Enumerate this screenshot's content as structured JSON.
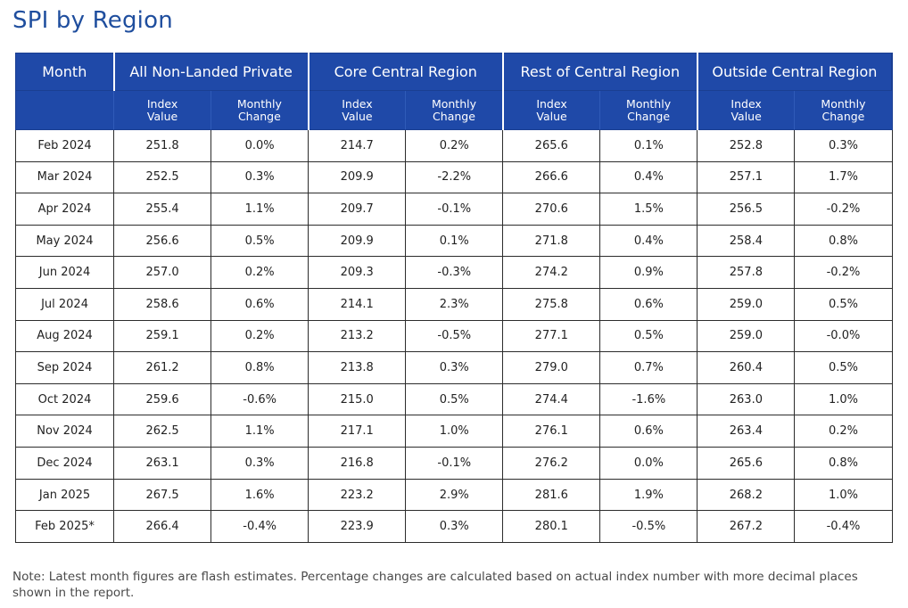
{
  "title": "SPI by Region",
  "header": {
    "month": "Month",
    "groups": [
      "All Non-Landed Private",
      "Core Central Region",
      "Rest of Central Region",
      "Outside Central Region"
    ],
    "sub_index": "Index\nValue",
    "sub_change": "Monthly\nChange"
  },
  "chart_data": {
    "type": "table",
    "title": "SPI by Region",
    "columns": [
      "Month",
      "All Non-Landed Private - Index Value",
      "All Non-Landed Private - Monthly Change",
      "Core Central Region - Index Value",
      "Core Central Region - Monthly Change",
      "Rest of Central Region - Index Value",
      "Rest of Central Region - Monthly Change",
      "Outside Central Region - Index Value",
      "Outside Central Region - Monthly Change"
    ],
    "rows": [
      [
        "Feb 2024",
        "251.8",
        "0.0%",
        "214.7",
        "0.2%",
        "265.6",
        "0.1%",
        "252.8",
        "0.3%"
      ],
      [
        "Mar 2024",
        "252.5",
        "0.3%",
        "209.9",
        "-2.2%",
        "266.6",
        "0.4%",
        "257.1",
        "1.7%"
      ],
      [
        "Apr 2024",
        "255.4",
        "1.1%",
        "209.7",
        "-0.1%",
        "270.6",
        "1.5%",
        "256.5",
        "-0.2%"
      ],
      [
        "May 2024",
        "256.6",
        "0.5%",
        "209.9",
        "0.1%",
        "271.8",
        "0.4%",
        "258.4",
        "0.8%"
      ],
      [
        "Jun 2024",
        "257.0",
        "0.2%",
        "209.3",
        "-0.3%",
        "274.2",
        "0.9%",
        "257.8",
        "-0.2%"
      ],
      [
        "Jul 2024",
        "258.6",
        "0.6%",
        "214.1",
        "2.3%",
        "275.8",
        "0.6%",
        "259.0",
        "0.5%"
      ],
      [
        "Aug 2024",
        "259.1",
        "0.2%",
        "213.2",
        "-0.5%",
        "277.1",
        "0.5%",
        "259.0",
        "-0.0%"
      ],
      [
        "Sep 2024",
        "261.2",
        "0.8%",
        "213.8",
        "0.3%",
        "279.0",
        "0.7%",
        "260.4",
        "0.5%"
      ],
      [
        "Oct 2024",
        "259.6",
        "-0.6%",
        "215.0",
        "0.5%",
        "274.4",
        "-1.6%",
        "263.0",
        "1.0%"
      ],
      [
        "Nov 2024",
        "262.5",
        "1.1%",
        "217.1",
        "1.0%",
        "276.1",
        "0.6%",
        "263.4",
        "0.2%"
      ],
      [
        "Dec 2024",
        "263.1",
        "0.3%",
        "216.8",
        "-0.1%",
        "276.2",
        "0.0%",
        "265.6",
        "0.8%"
      ],
      [
        "Jan 2025",
        "267.5",
        "1.6%",
        "223.2",
        "2.9%",
        "281.6",
        "1.9%",
        "268.2",
        "1.0%"
      ],
      [
        "Feb 2025*",
        "266.4",
        "-0.4%",
        "223.9",
        "0.3%",
        "280.1",
        "-0.5%",
        "267.2",
        "-0.4%"
      ]
    ]
  },
  "note": "Note: Latest month figures are flash estimates. Percentage changes are calculated based on actual index number with more decimal places shown in the report.",
  "colors": {
    "title": "#1f4e9e",
    "header_bg": "#1f49a8",
    "header_text": "#ffffff",
    "border": "#2c2c2c"
  }
}
